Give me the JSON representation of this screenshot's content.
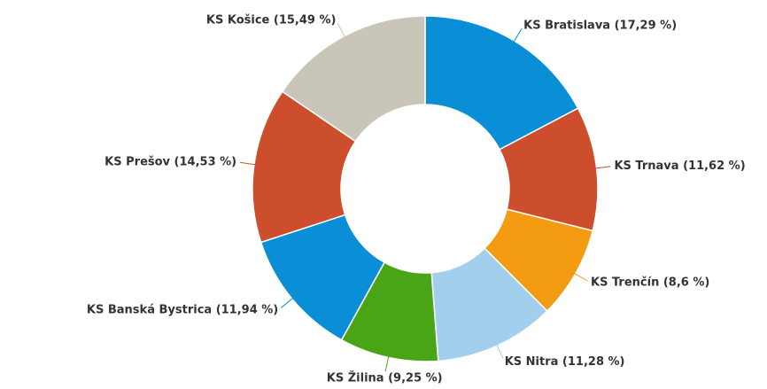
{
  "chart_data": {
    "type": "donut",
    "categories": [
      "KS Bratislava (17,29 %)",
      "KS Trnava (11,62 %)",
      "KS Trenčín (8,6 %)",
      "KS Nitra (11,28 %)",
      "KS Žilina (9,25 %)",
      "KS Banská Bystrica (11,94 %)",
      "KS Prešov (14,53 %)",
      "KS Košice (15,49 %)"
    ],
    "values": [
      17.29,
      11.62,
      8.6,
      11.28,
      9.25,
      11.94,
      14.53,
      15.49
    ],
    "colors": [
      "#0a8fd6",
      "#cc4e2c",
      "#f39c12",
      "#a3cfee",
      "#4aa516",
      "#0a8fd6",
      "#cc4e2c",
      "#c9c5b9"
    ]
  }
}
